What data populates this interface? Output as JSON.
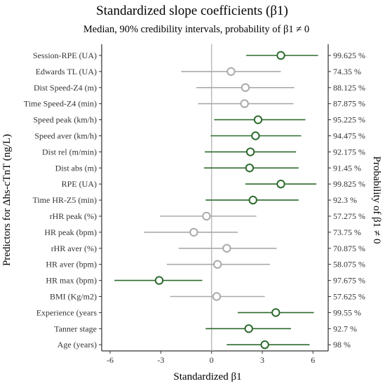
{
  "chart_data": {
    "type": "forest",
    "title": "Standardized slope coefficients (β1)",
    "subtitle": "Median, 90% credibility intervals, probability of β1 ≠ 0",
    "xlabel": "Standardized β1",
    "ylabel": "Predictors for Δhs-cTnT (ng/L)",
    "ylabel_right": "Probability of β1 ≠ 0",
    "xlim": [
      -6.5,
      6.9
    ],
    "xticks": [
      -6,
      -3,
      0,
      3,
      6
    ],
    "reference_line": 0,
    "colors": {
      "significant": "#2d6a2d",
      "nonsignificant": "#aaaaaa",
      "reference": "#bbbbbb"
    },
    "rows": [
      {
        "label": "Session-RPE (UA)",
        "median": 4.1,
        "low": 2.05,
        "high": 6.3,
        "prob": "99.625 %",
        "significant": true
      },
      {
        "label": "Edwards TL (UA)",
        "median": 1.15,
        "low": -1.8,
        "high": 4.1,
        "prob": "74.35 %",
        "significant": false
      },
      {
        "label": "Dist Speed-Z4 (m)",
        "median": 2.0,
        "low": -0.9,
        "high": 4.9,
        "prob": "88.125 %",
        "significant": false
      },
      {
        "label": "Time Speed-Z4 (min)",
        "median": 1.95,
        "low": -0.8,
        "high": 4.85,
        "prob": "87.875 %",
        "significant": false
      },
      {
        "label": "Speed peak (km/h)",
        "median": 2.75,
        "low": 0.15,
        "high": 5.55,
        "prob": "95.225 %",
        "significant": true
      },
      {
        "label": "Speed aver (km/h)",
        "median": 2.6,
        "low": -0.05,
        "high": 5.3,
        "prob": "94.475 %",
        "significant": true
      },
      {
        "label": "Dist rel (m/min)",
        "median": 2.3,
        "low": -0.4,
        "high": 5.0,
        "prob": "92.175 %",
        "significant": true
      },
      {
        "label": "Dist abs (m)",
        "median": 2.25,
        "low": -0.45,
        "high": 5.15,
        "prob": "91.45 %",
        "significant": true
      },
      {
        "label": "RPE (UA)",
        "median": 4.1,
        "low": 2.0,
        "high": 6.2,
        "prob": "99.825 %",
        "significant": true
      },
      {
        "label": "Time HR-Z5 (min)",
        "median": 2.45,
        "low": -0.35,
        "high": 5.15,
        "prob": "92.3 %",
        "significant": true
      },
      {
        "label": "rHR peak (%)",
        "median": -0.3,
        "low": -3.05,
        "high": 2.65,
        "prob": "57.275 %",
        "significant": false
      },
      {
        "label": "HR peak (bpm)",
        "median": -1.05,
        "low": -4.0,
        "high": 1.55,
        "prob": "73.75 %",
        "significant": false
      },
      {
        "label": "rHR aver (%)",
        "median": 0.9,
        "low": -1.95,
        "high": 3.85,
        "prob": "70.875 %",
        "significant": false
      },
      {
        "label": "HR aver (bpm)",
        "median": 0.35,
        "low": -2.65,
        "high": 3.45,
        "prob": "58.075 %",
        "significant": false
      },
      {
        "label": "HR max (bpm)",
        "median": -3.1,
        "low": -5.75,
        "high": -0.55,
        "prob": "97.675 %",
        "significant": true
      },
      {
        "label": "BMI (Kg/m2)",
        "median": 0.3,
        "low": -2.45,
        "high": 3.15,
        "prob": "57.625 %",
        "significant": false
      },
      {
        "label": "Experience (years",
        "median": 3.8,
        "low": 1.55,
        "high": 6.05,
        "prob": "99.55 %",
        "significant": true
      },
      {
        "label": "Tanner stage",
        "median": 2.2,
        "low": -0.35,
        "high": 4.7,
        "prob": "92.7 %",
        "significant": true
      },
      {
        "label": "Age (years)",
        "median": 3.15,
        "low": 0.9,
        "high": 5.8,
        "prob": "98 %",
        "significant": true
      }
    ]
  }
}
